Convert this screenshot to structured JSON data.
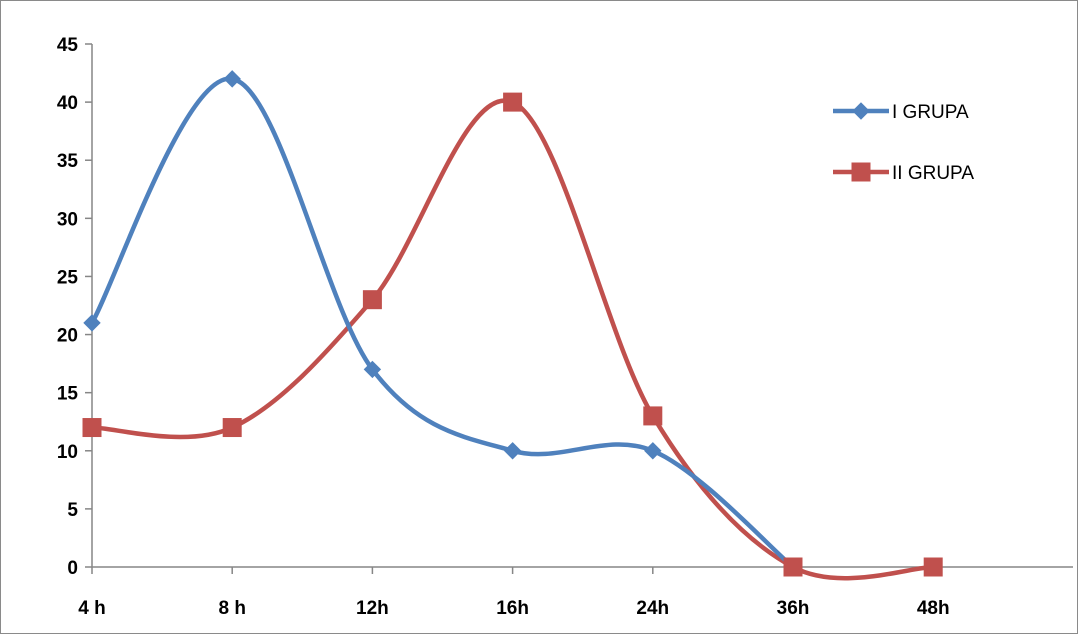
{
  "chart_data": {
    "type": "line",
    "title": "",
    "xlabel": "",
    "ylabel": "",
    "categories": [
      "4 h",
      "8 h",
      "12h",
      "16h",
      "24h",
      "36h",
      "48h"
    ],
    "ylim": [
      0,
      45
    ],
    "yticks": [
      0,
      5,
      10,
      15,
      20,
      25,
      30,
      35,
      40,
      45
    ],
    "grid": false,
    "smooth": true,
    "legend_position": "right",
    "series": [
      {
        "name": "I GRUPA",
        "values": [
          21,
          42,
          17,
          10,
          10,
          0,
          null
        ],
        "color": "#4F81BD",
        "marker": "diamond"
      },
      {
        "name": "II GRUPA",
        "values": [
          12,
          12,
          23,
          40,
          13,
          0,
          0
        ],
        "color": "#C0504D",
        "marker": "square"
      }
    ]
  }
}
